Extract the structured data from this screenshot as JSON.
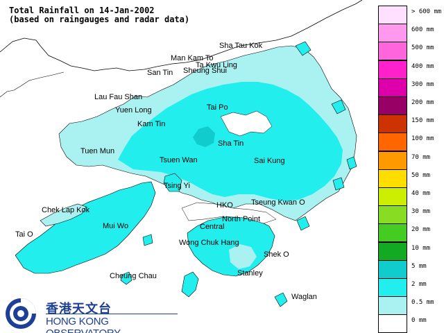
{
  "title": {
    "line1": "Total Rainfall on 14-Jan-2002",
    "line2": "(based on raingauges and radar data)"
  },
  "places": [
    {
      "id": "sha-tau-kok",
      "name": "Sha Tau Kok"
    },
    {
      "id": "man-kam-to",
      "name": "Man Kam To"
    },
    {
      "id": "ta-kwu-ling",
      "name": "Ta Kwu Ling"
    },
    {
      "id": "san-tin",
      "name": "San Tin"
    },
    {
      "id": "sheung-shui",
      "name": "Sheung Shui"
    },
    {
      "id": "lau-fau-shan",
      "name": "Lau Fau Shan"
    },
    {
      "id": "yuen-long",
      "name": "Yuen Long"
    },
    {
      "id": "tai-po",
      "name": "Tai Po"
    },
    {
      "id": "kam-tin",
      "name": "Kam Tin"
    },
    {
      "id": "sha-tin",
      "name": "Sha Tin"
    },
    {
      "id": "tuen-mun",
      "name": "Tuen Mun"
    },
    {
      "id": "tsuen-wan",
      "name": "Tsuen Wan"
    },
    {
      "id": "sai-kung",
      "name": "Sai Kung"
    },
    {
      "id": "tsing-yi",
      "name": "Tsing Yi"
    },
    {
      "id": "hko",
      "name": "HKO"
    },
    {
      "id": "tseung-kwan-o",
      "name": "Tseung Kwan O"
    },
    {
      "id": "chek-lap-kok",
      "name": "Chek Lap Kok"
    },
    {
      "id": "north-point",
      "name": "North Point"
    },
    {
      "id": "mui-wo",
      "name": "Mui Wo"
    },
    {
      "id": "central",
      "name": "Central"
    },
    {
      "id": "tai-o",
      "name": "Tai O"
    },
    {
      "id": "wong-chuk-hang",
      "name": "Wong Chuk Hang"
    },
    {
      "id": "shek-o",
      "name": "Shek O"
    },
    {
      "id": "cheung-chau",
      "name": "Cheung Chau"
    },
    {
      "id": "stanley",
      "name": "Stanley"
    },
    {
      "id": "waglan",
      "name": "Waglan"
    }
  ],
  "legend": [
    {
      "label": "> 600 mm",
      "color": "#ffe0ff"
    },
    {
      "label": "600 mm",
      "color": "#ff99ee"
    },
    {
      "label": "500 mm",
      "color": "#ff66dd"
    },
    {
      "label": "400 mm",
      "color": "#ff22cc"
    },
    {
      "label": "300 mm",
      "color": "#dd00aa"
    },
    {
      "label": "200 mm",
      "color": "#990066"
    },
    {
      "label": "150 mm",
      "color": "#cc3300"
    },
    {
      "label": "100 mm",
      "color": "#ff6600"
    },
    {
      "label": "70 mm",
      "color": "#ff9900"
    },
    {
      "label": "50 mm",
      "color": "#ffdd00"
    },
    {
      "label": "40 mm",
      "color": "#ccee00"
    },
    {
      "label": "30 mm",
      "color": "#88dd22"
    },
    {
      "label": "20 mm",
      "color": "#44cc22"
    },
    {
      "label": "10 mm",
      "color": "#11aa22"
    },
    {
      "label": "5 mm",
      "color": "#11cccc"
    },
    {
      "label": "2 mm",
      "color": "#22eeee"
    },
    {
      "label": "0.5 mm",
      "color": "#aaf2f2"
    },
    {
      "label": "0 mm",
      "color": "#ffffff"
    }
  ],
  "logo": {
    "name_cn": "香港天文台",
    "name_en": "HONG KONG OBSERVATORY"
  },
  "colors": {
    "rain_light": "#aaf2f2",
    "rain_2mm": "#22eeee",
    "rain_5mm": "#11cccc",
    "background": "#ffffff",
    "coastline": "#000000",
    "brand": "#1d3f95"
  }
}
